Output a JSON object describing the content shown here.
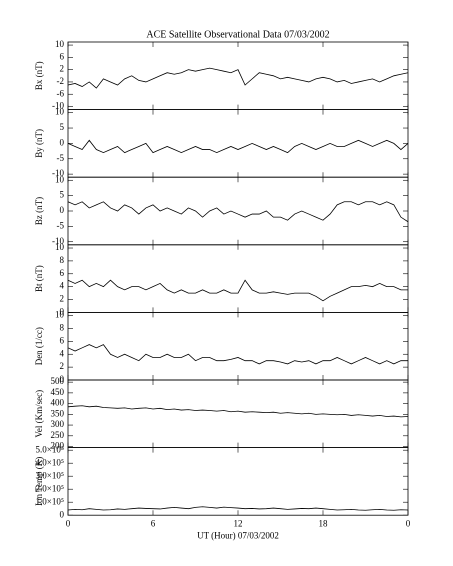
{
  "chart_data": [
    {
      "type": "line",
      "title": "ACE Satellite Observational Data   07/03/2002",
      "ylabel": "Bx (nT)",
      "color": "#000000",
      "x": [
        0,
        0.5,
        1,
        1.5,
        2,
        2.5,
        3,
        3.5,
        4,
        4.5,
        5,
        5.5,
        6,
        6.5,
        7,
        7.5,
        8,
        8.5,
        9,
        9.5,
        10,
        10.5,
        11,
        11.5,
        12,
        12.5,
        13,
        13.5,
        14,
        14.5,
        15,
        15.5,
        16,
        16.5,
        17,
        17.5,
        18,
        18.5,
        19,
        19.5,
        20,
        20.5,
        21,
        21.5,
        22,
        22.5,
        23,
        23.5,
        24
      ],
      "values": [
        -3,
        -2.5,
        -3.5,
        -2,
        -4,
        -1,
        -2,
        -3,
        -1,
        0,
        -1.5,
        -2,
        -1,
        0,
        1,
        0.5,
        1,
        2,
        1.5,
        2,
        2.5,
        2,
        1.5,
        1,
        2,
        -3,
        -1,
        1,
        0.5,
        0,
        -1,
        -0.5,
        -1,
        -1.5,
        -2,
        -1,
        -0.5,
        -1,
        -2,
        -1.5,
        -2.5,
        -2,
        -1.5,
        -1,
        -2,
        -1,
        0,
        0.5,
        1
      ],
      "xlim": [
        0,
        24
      ],
      "ylim": [
        -11,
        11
      ],
      "yticks": [
        10,
        6,
        2,
        -2,
        -6,
        -10
      ]
    },
    {
      "type": "line",
      "ylabel": "By (nT)",
      "color": "#000000",
      "x": [
        0,
        0.5,
        1,
        1.5,
        2,
        2.5,
        3,
        3.5,
        4,
        4.5,
        5,
        5.5,
        6,
        6.5,
        7,
        7.5,
        8,
        8.5,
        9,
        9.5,
        10,
        10.5,
        11,
        11.5,
        12,
        12.5,
        13,
        13.5,
        14,
        14.5,
        15,
        15.5,
        16,
        16.5,
        17,
        17.5,
        18,
        18.5,
        19,
        19.5,
        20,
        20.5,
        21,
        21.5,
        22,
        22.5,
        23,
        23.5,
        24
      ],
      "values": [
        0,
        -1,
        -2,
        1,
        -2,
        -3,
        -2,
        -1,
        -3,
        -2,
        -1,
        0,
        -3,
        -2,
        -1,
        -2,
        -3,
        -2,
        -1,
        -2,
        -2,
        -3,
        -2,
        -1,
        -2,
        -1,
        0,
        -1,
        -2,
        -1,
        -2,
        -3,
        -1,
        0,
        -1,
        -2,
        -1,
        0,
        -1,
        -1,
        0,
        1,
        0,
        -1,
        0,
        1,
        0,
        -2,
        0
      ],
      "xlim": [
        0,
        24
      ],
      "ylim": [
        -11,
        11
      ],
      "yticks": [
        10,
        5,
        0,
        -5,
        -10
      ]
    },
    {
      "type": "line",
      "ylabel": "Bz (nT)",
      "color": "#000000",
      "x": [
        0,
        0.5,
        1,
        1.5,
        2,
        2.5,
        3,
        3.5,
        4,
        4.5,
        5,
        5.5,
        6,
        6.5,
        7,
        7.5,
        8,
        8.5,
        9,
        9.5,
        10,
        10.5,
        11,
        11.5,
        12,
        12.5,
        13,
        13.5,
        14,
        14.5,
        15,
        15.5,
        16,
        16.5,
        17,
        17.5,
        18,
        18.5,
        19,
        19.5,
        20,
        20.5,
        21,
        21.5,
        22,
        22.5,
        23,
        23.5,
        24
      ],
      "values": [
        3,
        2,
        3,
        1,
        2,
        3,
        1,
        0,
        2,
        1,
        -1,
        1,
        2,
        0,
        1,
        0,
        -1,
        1,
        0,
        -2,
        0,
        1,
        -1,
        0,
        -1,
        -2,
        -1,
        -1,
        0,
        -2,
        -2,
        -3,
        -1,
        0,
        -1,
        -2,
        -3,
        -1,
        2,
        3,
        3,
        2,
        3,
        3,
        2,
        3,
        2,
        -2,
        -3.5
      ],
      "xlim": [
        0,
        24
      ],
      "ylim": [
        -11,
        11
      ],
      "yticks": [
        10,
        5,
        0,
        -5,
        -10
      ]
    },
    {
      "type": "line",
      "ylabel": "Bt (nT)",
      "color": "#000000",
      "x": [
        0,
        0.5,
        1,
        1.5,
        2,
        2.5,
        3,
        3.5,
        4,
        4.5,
        5,
        5.5,
        6,
        6.5,
        7,
        7.5,
        8,
        8.5,
        9,
        9.5,
        10,
        10.5,
        11,
        11.5,
        12,
        12.5,
        13,
        13.5,
        14,
        14.5,
        15,
        15.5,
        16,
        16.5,
        17,
        17.5,
        18,
        18.5,
        19,
        19.5,
        20,
        20.5,
        21,
        21.5,
        22,
        22.5,
        23,
        23.5,
        24
      ],
      "values": [
        5,
        4.5,
        5,
        4,
        4.5,
        4,
        5,
        4,
        3.5,
        4,
        4,
        3.5,
        4,
        4.5,
        3.5,
        3,
        3.5,
        3,
        3,
        3.5,
        3,
        3,
        3.5,
        3,
        3,
        5,
        3.5,
        3,
        3,
        3.2,
        3,
        2.8,
        3,
        3,
        3,
        2.5,
        1.8,
        2.5,
        3,
        3.5,
        4,
        4,
        4.2,
        4,
        4.5,
        4,
        4,
        3.5,
        3.5
      ],
      "xlim": [
        0,
        24
      ],
      "ylim": [
        0,
        10.5
      ],
      "yticks": [
        10,
        8,
        6,
        4,
        2,
        0
      ]
    },
    {
      "type": "line",
      "ylabel": "Den (1/cc)",
      "color": "#000000",
      "x": [
        0,
        0.5,
        1,
        1.5,
        2,
        2.5,
        3,
        3.5,
        4,
        4.5,
        5,
        5.5,
        6,
        6.5,
        7,
        7.5,
        8,
        8.5,
        9,
        9.5,
        10,
        10.5,
        11,
        11.5,
        12,
        12.5,
        13,
        13.5,
        14,
        14.5,
        15,
        15.5,
        16,
        16.5,
        17,
        17.5,
        18,
        18.5,
        19,
        19.5,
        20,
        20.5,
        21,
        21.5,
        22,
        22.5,
        23,
        23.5,
        24
      ],
      "values": [
        5,
        4.5,
        5,
        5.5,
        5,
        5.5,
        4,
        3.5,
        4,
        3.5,
        3,
        4,
        3.5,
        3.5,
        4,
        3.5,
        3.5,
        4,
        3,
        3.5,
        3.5,
        3,
        3,
        3.2,
        3.5,
        3,
        3,
        2.5,
        3,
        3,
        2.8,
        2.5,
        3,
        2.8,
        3,
        2.5,
        3,
        3,
        3.5,
        3,
        2.5,
        3,
        3.5,
        3,
        2.5,
        3,
        2.5,
        3,
        3
      ],
      "xlim": [
        0,
        24
      ],
      "ylim": [
        0,
        10.5
      ],
      "yticks": [
        10,
        8,
        6,
        4,
        2,
        0
      ]
    },
    {
      "type": "line",
      "ylabel": "Vel (Km/sec)",
      "color": "#000000",
      "x": [
        0,
        0.5,
        1,
        1.5,
        2,
        2.5,
        3,
        3.5,
        4,
        4.5,
        5,
        5.5,
        6,
        6.5,
        7,
        7.5,
        8,
        8.5,
        9,
        9.5,
        10,
        10.5,
        11,
        11.5,
        12,
        12.5,
        13,
        13.5,
        14,
        14.5,
        15,
        15.5,
        16,
        16.5,
        17,
        17.5,
        18,
        18.5,
        19,
        19.5,
        20,
        20.5,
        21,
        21.5,
        22,
        22.5,
        23,
        23.5,
        24
      ],
      "values": [
        385,
        388,
        390,
        385,
        388,
        382,
        380,
        378,
        380,
        375,
        378,
        380,
        375,
        378,
        372,
        375,
        370,
        372,
        368,
        370,
        368,
        365,
        368,
        362,
        365,
        360,
        362,
        360,
        358,
        360,
        355,
        358,
        355,
        352,
        355,
        350,
        352,
        350,
        348,
        350,
        345,
        348,
        345,
        342,
        345,
        340,
        342,
        338,
        340
      ],
      "xlim": [
        0,
        24
      ],
      "ylim": [
        195,
        510
      ],
      "yticks": [
        500,
        450,
        400,
        350,
        300,
        250,
        200
      ]
    },
    {
      "type": "line",
      "ylabel": "Ion Temp (K)",
      "color": "#000000",
      "xlabel": "UT (Hour)   07/03/2002",
      "x": [
        0,
        0.5,
        1,
        1.5,
        2,
        2.5,
        3,
        3.5,
        4,
        4.5,
        5,
        5.5,
        6,
        6.5,
        7,
        7.5,
        8,
        8.5,
        9,
        9.5,
        10,
        10.5,
        11,
        11.5,
        12,
        12.5,
        13,
        13.5,
        14,
        14.5,
        15,
        15.5,
        16,
        16.5,
        17,
        17.5,
        18,
        18.5,
        19,
        19.5,
        20,
        20.5,
        21,
        21.5,
        22,
        22.5,
        23,
        23.5,
        24
      ],
      "values": [
        40000,
        45000,
        42000,
        50000,
        45000,
        40000,
        42000,
        48000,
        45000,
        50000,
        55000,
        52000,
        50000,
        48000,
        55000,
        60000,
        55000,
        50000,
        60000,
        65000,
        60000,
        55000,
        62000,
        58000,
        55000,
        50000,
        52000,
        48000,
        50000,
        55000,
        50000,
        45000,
        48000,
        52000,
        50000,
        55000,
        50000,
        45000,
        40000,
        42000,
        45000,
        40000,
        38000,
        42000,
        45000,
        40000,
        38000,
        42000,
        40000
      ],
      "xlim": [
        0,
        24
      ],
      "ylim": [
        0,
        520000
      ],
      "yticks": [
        {
          "value": 500000,
          "label": "5.0×10⁵"
        },
        {
          "value": 400000,
          "label": "4.0×10⁵"
        },
        {
          "value": 300000,
          "label": "3.0×10⁵"
        },
        {
          "value": 200000,
          "label": "2.0×10⁵"
        },
        {
          "value": 100000,
          "label": "1.0×10⁵"
        },
        0
      ],
      "xticks": [
        0,
        6,
        12,
        18,
        {
          "value": 24,
          "label": "0"
        }
      ]
    }
  ]
}
